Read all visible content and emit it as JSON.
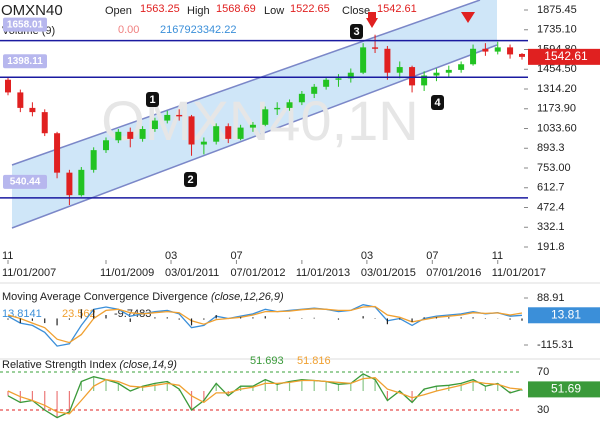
{
  "chart_data": [
    {
      "type": "candlestick",
      "title": "OMXN40",
      "ohlc_labels": [
        "Open",
        "High",
        "Low",
        "Close"
      ],
      "volume_legend": {
        "name": "Volume (9)",
        "readouts": [
          "0.00",
          "2167923342.22"
        ]
      },
      "watermark": "OMXN40,1N",
      "annotations": [
        "1",
        "2",
        "3",
        "4"
      ],
      "x": [
        "2007-11-01",
        "2008-02-01",
        "2008-05-01",
        "2008-08-01",
        "2008-11-01",
        "2009-02-01",
        "2009-05-01",
        "2009-08-01",
        "2009-11-01",
        "2010-02-01",
        "2010-05-01",
        "2010-08-01",
        "2010-11-01",
        "2011-02-01",
        "2011-05-01",
        "2011-08-01",
        "2011-11-01",
        "2012-02-01",
        "2012-05-01",
        "2012-08-01",
        "2012-11-01",
        "2013-02-01",
        "2013-05-01",
        "2013-08-01",
        "2013-11-01",
        "2014-02-01",
        "2014-05-01",
        "2014-08-01",
        "2014-11-01",
        "2015-02-01",
        "2015-05-01",
        "2015-08-01",
        "2015-11-01",
        "2016-02-01",
        "2016-05-01",
        "2016-08-01",
        "2016-11-01",
        "2017-02-01",
        "2017-05-01",
        "2017-08-01",
        "2017-11-01",
        "2018-02-01",
        "2018-05-01"
      ],
      "open": [
        1380,
        1290,
        1180,
        1150,
        1000,
        720,
        560,
        740,
        880,
        950,
        1010,
        960,
        1030,
        1090,
        1130,
        1120,
        920,
        940,
        1050,
        960,
        1040,
        1060,
        1170,
        1180,
        1220,
        1280,
        1330,
        1380,
        1390,
        1430,
        1610,
        1600,
        1430,
        1470,
        1340,
        1410,
        1430,
        1450,
        1490,
        1600,
        1580,
        1610,
        1563.25
      ],
      "high": [
        1400,
        1310,
        1220,
        1170,
        1010,
        740,
        760,
        900,
        970,
        1030,
        1040,
        1050,
        1110,
        1160,
        1170,
        1130,
        970,
        1070,
        1070,
        1060,
        1080,
        1190,
        1220,
        1240,
        1300,
        1350,
        1400,
        1420,
        1460,
        1640,
        1700,
        1620,
        1510,
        1480,
        1440,
        1460,
        1480,
        1510,
        1630,
        1640,
        1650,
        1630,
        1568.69
      ],
      "low": [
        1270,
        1150,
        1120,
        980,
        680,
        490,
        550,
        720,
        860,
        930,
        900,
        940,
        1010,
        1070,
        1090,
        840,
        850,
        920,
        930,
        950,
        1010,
        1050,
        1130,
        1160,
        1200,
        1250,
        1310,
        1330,
        1360,
        1420,
        1570,
        1380,
        1390,
        1290,
        1300,
        1370,
        1400,
        1430,
        1480,
        1550,
        1560,
        1530,
        1522.65
      ],
      "close": [
        1290,
        1180,
        1150,
        1000,
        720,
        560,
        740,
        880,
        950,
        1010,
        960,
        1030,
        1090,
        1130,
        1120,
        920,
        940,
        1050,
        960,
        1040,
        1060,
        1170,
        1180,
        1220,
        1280,
        1330,
        1380,
        1390,
        1430,
        1610,
        1600,
        1430,
        1470,
        1340,
        1410,
        1430,
        1450,
        1490,
        1600,
        1580,
        1610,
        1560,
        1542.61
      ],
      "up_color": "#22c322",
      "down_color": "#e02020",
      "ylim": [
        99.5,
        1946.5
      ],
      "yticks": [
        1875.45,
        {
          "value": 1735.1,
          "label": "1735.10"
        },
        {
          "value": 1594.8,
          "label": "1594.80"
        },
        {
          "value": 1454.5,
          "label": "1454.50"
        },
        {
          "value": 1314.2,
          "label": "1314.20"
        },
        {
          "value": 1173.9,
          "label": "1173.90"
        },
        {
          "value": 1033.6,
          "label": "1033.60"
        },
        893.3,
        {
          "value": 753,
          "label": "753.00"
        },
        612.7,
        472.4,
        332.1,
        191.8
      ],
      "hlines": [
        1658.01,
        1398.11,
        540.44
      ],
      "xticks": [
        {
          "value": "2007-11-01",
          "label": "11/01/2007"
        },
        {
          "value": "2009-11-01",
          "label": "11/01/2009"
        },
        {
          "value": "2011-03-01",
          "label": "03/01/2011"
        },
        {
          "value": "2012-07-01",
          "label": "07/01/2012"
        },
        {
          "value": "2013-11-01",
          "label": "11/01/2013"
        },
        {
          "value": "2015-03-01",
          "label": "03/01/2015"
        },
        {
          "value": "2016-07-01",
          "label": "07/01/2016"
        },
        {
          "value": "2017-11-01",
          "label": "11/01/2017"
        }
      ],
      "month_ticks": [
        {
          "value": "2007-11-01",
          "label": "11"
        },
        {
          "value": "2011-03-01",
          "label": "03"
        },
        {
          "value": "2012-07-01",
          "label": "07"
        },
        {
          "value": "2015-03-01",
          "label": "03"
        },
        {
          "value": "2016-07-01",
          "label": "07"
        },
        {
          "value": "2017-11-01",
          "label": "11"
        }
      ]
    },
    {
      "type": "macd",
      "title": "Moving Average Convergence Divergence",
      "params": "(close,12,26,9)",
      "ylim": [
        -171.8,
        145.4
      ],
      "yticks": [
        88.91,
        -115.31
      ],
      "series": [
        {
          "color": "#3b8fd9",
          "last_label": "13.81",
          "values": [
            10,
            -20,
            -30,
            -60,
            -120,
            -110,
            -30,
            40,
            50,
            40,
            10,
            20,
            30,
            35,
            20,
            -40,
            -30,
            10,
            0,
            10,
            20,
            40,
            30,
            35,
            40,
            45,
            40,
            30,
            35,
            60,
            50,
            -10,
            0,
            -30,
            0,
            10,
            15,
            20,
            30,
            20,
            25,
            10,
            13.8141
          ]
        },
        {
          "color": "#f0a030",
          "values": [
            15,
            0,
            -20,
            -40,
            -90,
            -105,
            -70,
            0,
            35,
            40,
            25,
            20,
            25,
            30,
            25,
            -10,
            -25,
            -5,
            0,
            5,
            15,
            30,
            30,
            32,
            38,
            42,
            40,
            35,
            35,
            50,
            52,
            15,
            5,
            -15,
            -5,
            5,
            10,
            15,
            25,
            22,
            24,
            15,
            23.562
          ]
        },
        {
          "color": "#222222",
          "style": "bars",
          "values": [
            -5,
            -20,
            -10,
            -20,
            -30,
            -5,
            40,
            40,
            15,
            0,
            -15,
            0,
            5,
            5,
            -5,
            -30,
            -5,
            15,
            0,
            5,
            5,
            10,
            0,
            3,
            2,
            3,
            0,
            -5,
            0,
            10,
            -2,
            -25,
            -5,
            -15,
            5,
            5,
            5,
            5,
            5,
            -2,
            1,
            -5,
            -9.7483
          ]
        }
      ]
    },
    {
      "type": "rsi",
      "title": "Relative Strength Index",
      "params": "(close,14,9)",
      "ylim": [
        19.5,
        80.5
      ],
      "yticks": [
        70,
        30
      ],
      "tick_colors": [
        "#3aa03a",
        "#e02020"
      ],
      "series": [
        {
          "color": "#3a9a3a",
          "last_label": "51.69",
          "values": [
            45,
            38,
            40,
            30,
            22,
            28,
            60,
            65,
            62,
            58,
            50,
            55,
            58,
            60,
            52,
            30,
            40,
            58,
            45,
            55,
            55,
            62,
            57,
            60,
            62,
            61,
            60,
            57,
            58,
            68,
            62,
            40,
            50,
            38,
            52,
            55,
            56,
            58,
            62,
            55,
            58,
            48,
            51.693
          ]
        },
        {
          "color": "#f0a030",
          "values": [
            50,
            44,
            40,
            35,
            28,
            26,
            40,
            55,
            62,
            60,
            55,
            54,
            56,
            58,
            56,
            45,
            38,
            48,
            48,
            52,
            54,
            58,
            58,
            59,
            61,
            61,
            60,
            59,
            58,
            63,
            64,
            52,
            48,
            43,
            46,
            50,
            53,
            56,
            60,
            58,
            57,
            53,
            51.816
          ]
        }
      ]
    }
  ]
}
